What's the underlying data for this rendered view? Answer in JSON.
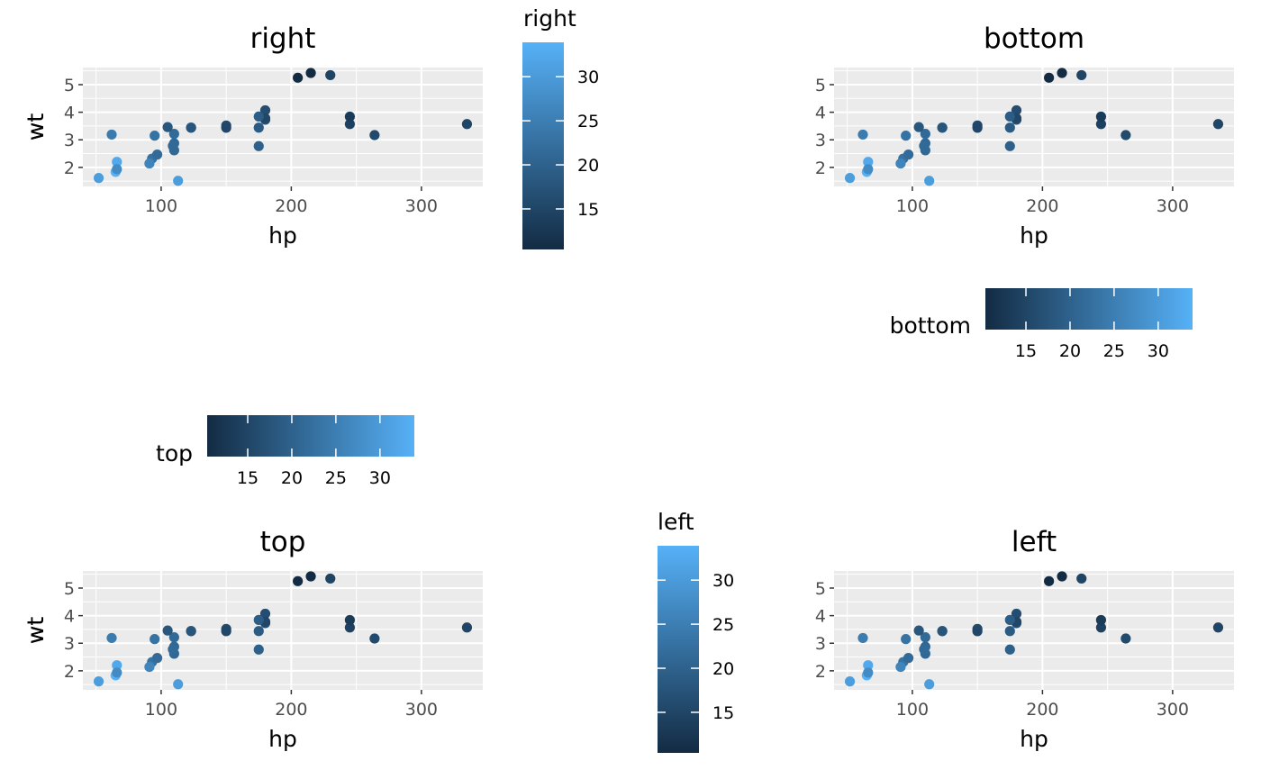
{
  "colors": {
    "panel_bg": "#EBEBEB",
    "grid": "#FFFFFF",
    "low": "#132B43",
    "high": "#56B1F7",
    "tick_text": "#4D4D4D"
  },
  "chart_data": [
    {
      "type": "scatter",
      "title": "right",
      "xlabel": "hp",
      "ylabel": "wt",
      "xlim": [
        39.85,
        347.15
      ],
      "ylim": [
        1.31,
        5.62
      ],
      "xticks": [
        "100",
        "200",
        "300"
      ],
      "yticks": [
        "2",
        "3",
        "4",
        "5"
      ],
      "color_var": "mpg",
      "legend": {
        "title": "right",
        "position": "right",
        "range": [
          10.4,
          33.9
        ],
        "ticks": [
          "15",
          "20",
          "25",
          "30"
        ]
      }
    },
    {
      "type": "scatter",
      "title": "bottom",
      "xlabel": "hp",
      "ylabel": "wt",
      "xlim": [
        39.85,
        347.15
      ],
      "ylim": [
        1.31,
        5.62
      ],
      "xticks": [
        "100",
        "200",
        "300"
      ],
      "yticks": [
        "2",
        "3",
        "4",
        "5"
      ],
      "color_var": "mpg",
      "legend": {
        "title": "bottom",
        "position": "bottom",
        "range": [
          10.4,
          33.9
        ],
        "ticks": [
          "15",
          "20",
          "25",
          "30"
        ]
      }
    },
    {
      "type": "scatter",
      "title": "top",
      "xlabel": "hp",
      "ylabel": "wt",
      "xlim": [
        39.85,
        347.15
      ],
      "ylim": [
        1.31,
        5.62
      ],
      "xticks": [
        "100",
        "200",
        "300"
      ],
      "yticks": [
        "2",
        "3",
        "4",
        "5"
      ],
      "color_var": "mpg",
      "legend": {
        "title": "top",
        "position": "top",
        "range": [
          10.4,
          33.9
        ],
        "ticks": [
          "15",
          "20",
          "25",
          "30"
        ]
      }
    },
    {
      "type": "scatter",
      "title": "left",
      "xlabel": "hp",
      "ylabel": "wt",
      "xlim": [
        39.85,
        347.15
      ],
      "ylim": [
        1.31,
        5.62
      ],
      "xticks": [
        "100",
        "200",
        "300"
      ],
      "yticks": [
        "2",
        "3",
        "4",
        "5"
      ],
      "color_var": "mpg",
      "legend": {
        "title": "left",
        "position": "left",
        "range": [
          10.4,
          33.9
        ],
        "ticks": [
          "15",
          "20",
          "25",
          "30"
        ]
      }
    }
  ],
  "points": [
    {
      "hp": 110,
      "wt": 2.62,
      "mpg": 21.0
    },
    {
      "hp": 110,
      "wt": 2.875,
      "mpg": 21.0
    },
    {
      "hp": 93,
      "wt": 2.32,
      "mpg": 22.8
    },
    {
      "hp": 110,
      "wt": 3.215,
      "mpg": 21.4
    },
    {
      "hp": 175,
      "wt": 3.44,
      "mpg": 18.7
    },
    {
      "hp": 105,
      "wt": 3.46,
      "mpg": 18.1
    },
    {
      "hp": 245,
      "wt": 3.57,
      "mpg": 14.3
    },
    {
      "hp": 62,
      "wt": 3.19,
      "mpg": 24.4
    },
    {
      "hp": 95,
      "wt": 3.15,
      "mpg": 22.8
    },
    {
      "hp": 123,
      "wt": 3.44,
      "mpg": 19.2
    },
    {
      "hp": 123,
      "wt": 3.44,
      "mpg": 17.8
    },
    {
      "hp": 180,
      "wt": 4.07,
      "mpg": 16.4
    },
    {
      "hp": 180,
      "wt": 3.73,
      "mpg": 17.3
    },
    {
      "hp": 180,
      "wt": 3.78,
      "mpg": 15.2
    },
    {
      "hp": 205,
      "wt": 5.25,
      "mpg": 10.4
    },
    {
      "hp": 215,
      "wt": 5.424,
      "mpg": 10.4
    },
    {
      "hp": 230,
      "wt": 5.345,
      "mpg": 14.7
    },
    {
      "hp": 66,
      "wt": 2.2,
      "mpg": 32.4
    },
    {
      "hp": 52,
      "wt": 1.615,
      "mpg": 30.4
    },
    {
      "hp": 65,
      "wt": 1.835,
      "mpg": 33.9
    },
    {
      "hp": 97,
      "wt": 2.465,
      "mpg": 21.5
    },
    {
      "hp": 150,
      "wt": 3.52,
      "mpg": 15.5
    },
    {
      "hp": 150,
      "wt": 3.435,
      "mpg": 15.2
    },
    {
      "hp": 245,
      "wt": 3.84,
      "mpg": 13.3
    },
    {
      "hp": 175,
      "wt": 3.845,
      "mpg": 19.2
    },
    {
      "hp": 66,
      "wt": 1.935,
      "mpg": 27.3
    },
    {
      "hp": 91,
      "wt": 2.14,
      "mpg": 26.0
    },
    {
      "hp": 113,
      "wt": 1.513,
      "mpg": 30.4
    },
    {
      "hp": 264,
      "wt": 3.17,
      "mpg": 15.8
    },
    {
      "hp": 175,
      "wt": 2.77,
      "mpg": 19.7
    },
    {
      "hp": 335,
      "wt": 3.57,
      "mpg": 15.0
    },
    {
      "hp": 109,
      "wt": 2.78,
      "mpg": 21.4
    }
  ]
}
